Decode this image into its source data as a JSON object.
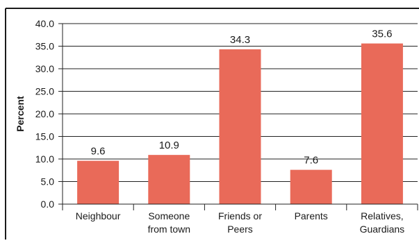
{
  "chart_data": {
    "type": "bar",
    "categories": [
      [
        "Neighbour"
      ],
      [
        "Someone",
        "from town"
      ],
      [
        "Friends or",
        "Peers"
      ],
      [
        "Parents"
      ],
      [
        "Relatives,",
        "Guardians"
      ]
    ],
    "values": [
      9.6,
      10.9,
      34.3,
      7.6,
      35.6
    ],
    "data_labels": [
      "9.6",
      "10.9",
      "34.3",
      "7.6",
      "35.6"
    ],
    "ylabel": "Percent",
    "xlabel": "",
    "ylim": [
      0,
      40
    ],
    "yticks": [
      "0.0",
      "5.0",
      "10.0",
      "15.0",
      "20.0",
      "25.0",
      "30.0",
      "35.0",
      "40.0"
    ],
    "grid": "horizontal",
    "bar_color": "#e96a59",
    "frame_color": "#1a1a1a"
  }
}
